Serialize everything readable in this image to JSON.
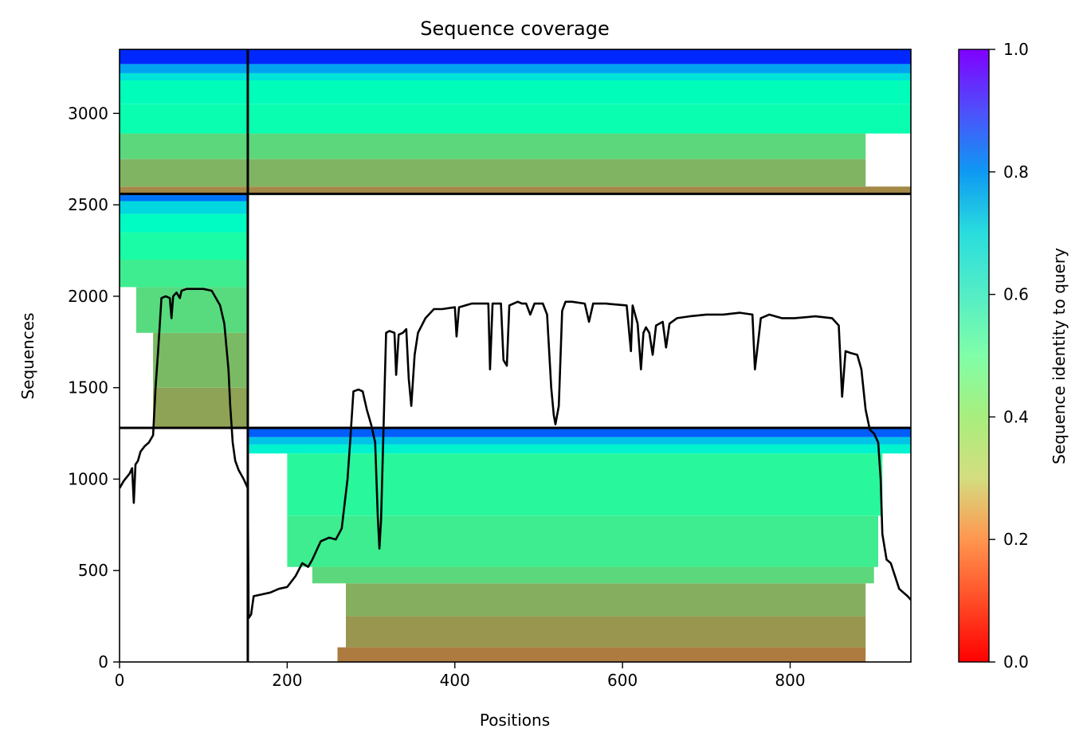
{
  "chart_data": {
    "type": "heatmap",
    "title": "Sequence coverage",
    "xlabel": "Positions",
    "ylabel": "Sequences",
    "xlim": [
      0,
      944
    ],
    "ylim": [
      0,
      3350
    ],
    "x_ticks": [
      "0",
      "200",
      "400",
      "600",
      "800"
    ],
    "y_ticks": [
      "0",
      "500",
      "1000",
      "1500",
      "2000",
      "2500",
      "3000"
    ],
    "colorbar": {
      "label": "Sequence identity to query",
      "range": [
        0,
        1
      ],
      "ticks": [
        "0.0",
        "0.2",
        "0.4",
        "0.6",
        "0.8",
        "1.0"
      ],
      "colormap": "rainbow_r"
    },
    "grid": false,
    "segment_boundaries_x": [
      153
    ],
    "segment_boundaries_y": [
      1280,
      2560
    ],
    "blocks": [
      {
        "name": "chain-1-rows",
        "x_range": [
          0,
          153
        ],
        "y_range": [
          1280,
          2560
        ],
        "bands": [
          {
            "y": [
              1280,
              1500
            ],
            "x": [
              40,
              153
            ],
            "identity": 0.22
          },
          {
            "y": [
              1500,
              1800
            ],
            "x": [
              40,
              153
            ],
            "identity": 0.26
          },
          {
            "y": [
              1800,
              2050
            ],
            "x": [
              20,
              153
            ],
            "identity": 0.33
          },
          {
            "y": [
              2050,
              2200
            ],
            "x": [
              0,
              153
            ],
            "identity": 0.38
          },
          {
            "y": [
              2200,
              2350
            ],
            "x": [
              0,
              153
            ],
            "identity": 0.45
          },
          {
            "y": [
              2350,
              2450
            ],
            "x": [
              0,
              153
            ],
            "identity": 0.55
          },
          {
            "y": [
              2450,
              2520
            ],
            "x": [
              0,
              153
            ],
            "identity": 0.68
          },
          {
            "y": [
              2520,
              2560
            ],
            "x": [
              0,
              153
            ],
            "identity": 0.85
          }
        ]
      },
      {
        "name": "chain-2-rows",
        "x_range": [
          153,
          944
        ],
        "y_range": [
          0,
          1280
        ],
        "bands": [
          {
            "y": [
              0,
              80
            ],
            "x": [
              260,
              890
            ],
            "identity": 0.16
          },
          {
            "y": [
              80,
              250
            ],
            "x": [
              270,
              890
            ],
            "identity": 0.2
          },
          {
            "y": [
              250,
              430
            ],
            "x": [
              270,
              890
            ],
            "identity": 0.24
          },
          {
            "y": [
              430,
              520
            ],
            "x": [
              230,
              900
            ],
            "identity": 0.32
          },
          {
            "y": [
              520,
              800
            ],
            "x": [
              200,
              905
            ],
            "identity": 0.38
          },
          {
            "y": [
              800,
              1140
            ],
            "x": [
              200,
              910
            ],
            "identity": 0.42
          },
          {
            "y": [
              1140,
              1190
            ],
            "x": [
              153,
              944
            ],
            "identity": 0.6
          },
          {
            "y": [
              1190,
              1230
            ],
            "x": [
              153,
              944
            ],
            "identity": 0.72
          },
          {
            "y": [
              1230,
              1280
            ],
            "x": [
              153,
              944
            ],
            "identity": 0.88
          }
        ]
      },
      {
        "name": "paired-rows",
        "x_range": [
          0,
          944
        ],
        "y_range": [
          2560,
          3350
        ],
        "bands": [
          {
            "y": [
              2560,
              2600
            ],
            "x": [
              0,
              944
            ],
            "identity": 0.18
          },
          {
            "y": [
              2600,
              2750
            ],
            "x": [
              0,
              890
            ],
            "identity": 0.25
          },
          {
            "y": [
              2750,
              2890
            ],
            "x": [
              0,
              890
            ],
            "identity": 0.32
          },
          {
            "y": [
              2890,
              3050
            ],
            "x": [
              0,
              944
            ],
            "identity": 0.48
          },
          {
            "y": [
              3050,
              3180
            ],
            "x": [
              0,
              944
            ],
            "identity": 0.52
          },
          {
            "y": [
              3180,
              3220
            ],
            "x": [
              0,
              944
            ],
            "identity": 0.65
          },
          {
            "y": [
              3220,
              3270
            ],
            "x": [
              0,
              944
            ],
            "identity": 0.78
          },
          {
            "y": [
              3270,
              3350
            ],
            "x": [
              0,
              944
            ],
            "identity": 0.95
          }
        ]
      }
    ],
    "coverage_line": {
      "name": "coverage",
      "color": "#000000",
      "points": [
        [
          0,
          950
        ],
        [
          5,
          990
        ],
        [
          12,
          1030
        ],
        [
          15,
          1060
        ],
        [
          17,
          870
        ],
        [
          19,
          1080
        ],
        [
          22,
          1100
        ],
        [
          25,
          1150
        ],
        [
          30,
          1180
        ],
        [
          35,
          1200
        ],
        [
          40,
          1240
        ],
        [
          43,
          1500
        ],
        [
          46,
          1700
        ],
        [
          50,
          1990
        ],
        [
          55,
          2000
        ],
        [
          60,
          1990
        ],
        [
          62,
          1880
        ],
        [
          64,
          2000
        ],
        [
          68,
          2020
        ],
        [
          72,
          1990
        ],
        [
          74,
          2030
        ],
        [
          80,
          2040
        ],
        [
          90,
          2040
        ],
        [
          100,
          2040
        ],
        [
          110,
          2030
        ],
        [
          120,
          1950
        ],
        [
          125,
          1850
        ],
        [
          128,
          1700
        ],
        [
          130,
          1600
        ],
        [
          132,
          1400
        ],
        [
          135,
          1200
        ],
        [
          138,
          1100
        ],
        [
          142,
          1050
        ],
        [
          148,
          1000
        ],
        [
          153,
          950
        ],
        [
          154,
          240
        ],
        [
          157,
          260
        ],
        [
          160,
          360
        ],
        [
          170,
          370
        ],
        [
          180,
          380
        ],
        [
          190,
          400
        ],
        [
          200,
          410
        ],
        [
          210,
          470
        ],
        [
          218,
          540
        ],
        [
          225,
          520
        ],
        [
          230,
          560
        ],
        [
          240,
          660
        ],
        [
          250,
          680
        ],
        [
          258,
          670
        ],
        [
          265,
          730
        ],
        [
          272,
          1000
        ],
        [
          275,
          1200
        ],
        [
          279,
          1480
        ],
        [
          285,
          1490
        ],
        [
          290,
          1480
        ],
        [
          295,
          1380
        ],
        [
          300,
          1300
        ],
        [
          305,
          1200
        ],
        [
          308,
          800
        ],
        [
          310,
          620
        ],
        [
          312,
          780
        ],
        [
          315,
          1300
        ],
        [
          318,
          1800
        ],
        [
          322,
          1810
        ],
        [
          328,
          1800
        ],
        [
          330,
          1570
        ],
        [
          333,
          1790
        ],
        [
          338,
          1800
        ],
        [
          342,
          1820
        ],
        [
          345,
          1550
        ],
        [
          348,
          1400
        ],
        [
          352,
          1680
        ],
        [
          356,
          1800
        ],
        [
          365,
          1880
        ],
        [
          375,
          1930
        ],
        [
          385,
          1930
        ],
        [
          400,
          1940
        ],
        [
          402,
          1780
        ],
        [
          405,
          1940
        ],
        [
          420,
          1960
        ],
        [
          440,
          1960
        ],
        [
          442,
          1600
        ],
        [
          445,
          1960
        ],
        [
          455,
          1960
        ],
        [
          458,
          1650
        ],
        [
          462,
          1620
        ],
        [
          465,
          1950
        ],
        [
          475,
          1970
        ],
        [
          480,
          1960
        ],
        [
          485,
          1960
        ],
        [
          490,
          1900
        ],
        [
          495,
          1960
        ],
        [
          500,
          1960
        ],
        [
          505,
          1960
        ],
        [
          510,
          1900
        ],
        [
          515,
          1500
        ],
        [
          518,
          1350
        ],
        [
          520,
          1300
        ],
        [
          524,
          1400
        ],
        [
          528,
          1920
        ],
        [
          532,
          1970
        ],
        [
          540,
          1970
        ],
        [
          555,
          1960
        ],
        [
          560,
          1860
        ],
        [
          565,
          1960
        ],
        [
          580,
          1960
        ],
        [
          605,
          1950
        ],
        [
          610,
          1700
        ],
        [
          612,
          1950
        ],
        [
          618,
          1850
        ],
        [
          622,
          1600
        ],
        [
          625,
          1800
        ],
        [
          628,
          1830
        ],
        [
          632,
          1800
        ],
        [
          636,
          1680
        ],
        [
          640,
          1840
        ],
        [
          648,
          1860
        ],
        [
          652,
          1720
        ],
        [
          656,
          1850
        ],
        [
          665,
          1880
        ],
        [
          680,
          1890
        ],
        [
          700,
          1900
        ],
        [
          720,
          1900
        ],
        [
          740,
          1910
        ],
        [
          755,
          1900
        ],
        [
          758,
          1600
        ],
        [
          762,
          1760
        ],
        [
          765,
          1880
        ],
        [
          775,
          1900
        ],
        [
          790,
          1880
        ],
        [
          805,
          1880
        ],
        [
          830,
          1890
        ],
        [
          850,
          1880
        ],
        [
          858,
          1840
        ],
        [
          862,
          1450
        ],
        [
          866,
          1700
        ],
        [
          872,
          1690
        ],
        [
          880,
          1680
        ],
        [
          885,
          1600
        ],
        [
          890,
          1380
        ],
        [
          895,
          1270
        ],
        [
          900,
          1250
        ],
        [
          905,
          1200
        ],
        [
          908,
          1000
        ],
        [
          910,
          700
        ],
        [
          915,
          560
        ],
        [
          920,
          540
        ],
        [
          930,
          400
        ],
        [
          940,
          360
        ],
        [
          944,
          340
        ]
      ]
    }
  }
}
